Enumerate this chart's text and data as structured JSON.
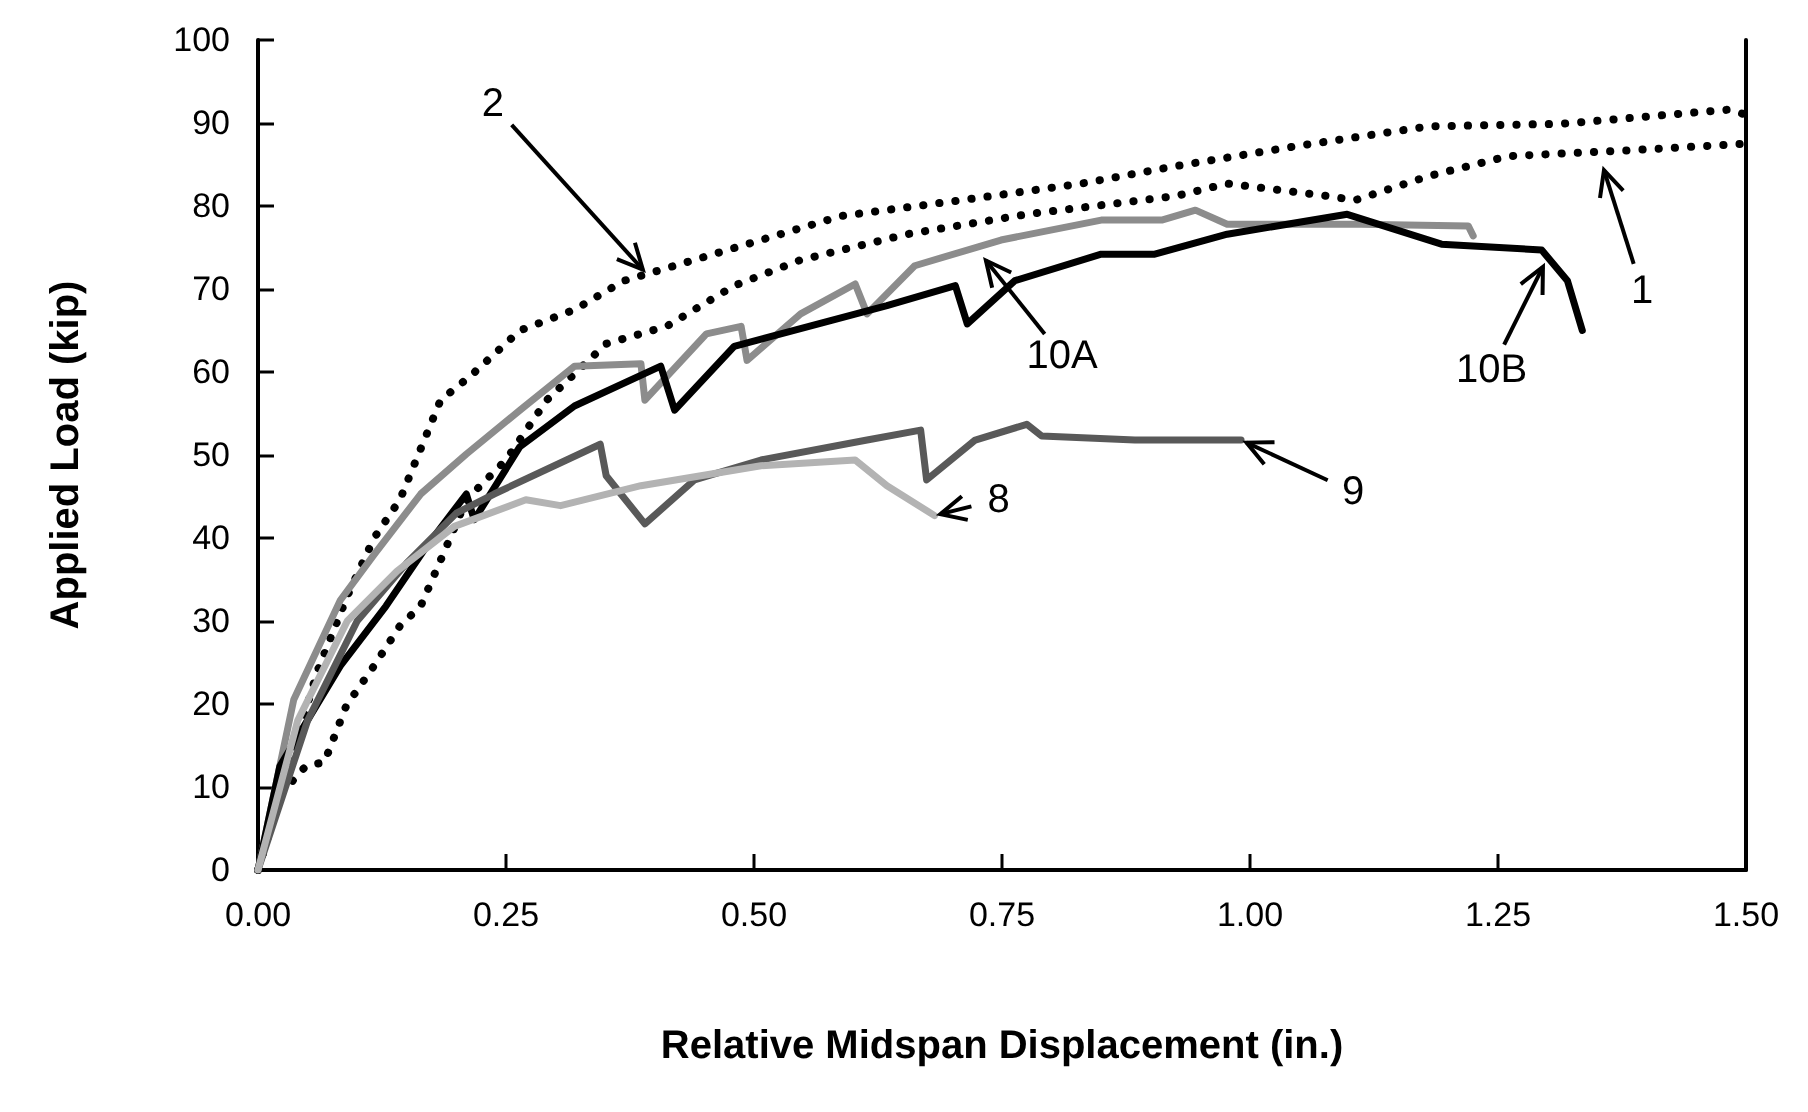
{
  "chart_data": {
    "type": "line",
    "xlabel": "Relative Midspan Displacement (in.)",
    "ylabel": "Applied Load (kip)",
    "xlim": [
      0,
      1.5
    ],
    "xticks": [
      {
        "value": 0,
        "label": "0.00"
      },
      {
        "value": 0.25,
        "label": "0.25"
      },
      {
        "value": 0.5,
        "label": "0.50"
      },
      {
        "value": 0.75,
        "label": "0.75"
      },
      {
        "value": 1,
        "label": "1.00"
      },
      {
        "value": 1.25,
        "label": "1.25"
      },
      {
        "value": 1.5,
        "label": "1.50"
      }
    ],
    "ylim": [
      0,
      100
    ],
    "yticks": [
      0,
      10,
      20,
      30,
      40,
      50,
      60,
      70,
      80,
      90,
      100
    ],
    "grid": false,
    "marker": "none",
    "series": [
      {
        "color": "#000000",
        "line_style": "dotted",
        "x": [
          0,
          0.03,
          0.06,
          0.09,
          0.117,
          0.143,
          0.184,
          0.214,
          0.264,
          0.319,
          0.369,
          0.392,
          0.507,
          0.588,
          0.709,
          0.83,
          0.925,
          1.046,
          1.18,
          1.314,
          1.482,
          1.5
        ],
        "values": [
          0,
          12,
          24,
          33,
          40,
          44.6,
          56.6,
          59.5,
          65,
          67.5,
          71,
          71.8,
          75.9,
          78.8,
          80.7,
          82.7,
          84.8,
          87.2,
          89.6,
          89.9,
          91.6,
          91
        ]
      },
      {
        "color": "#000000",
        "line_style": "dotted",
        "x": [
          0,
          0.022,
          0.048,
          0.067,
          0.089,
          0.117,
          0.143,
          0.164,
          0.184,
          0.21,
          0.25,
          0.291,
          0.351,
          0.412,
          0.48,
          0.547,
          0.654,
          0.775,
          0.925,
          0.977,
          1.078,
          1.106,
          1.18,
          1.26,
          1.381,
          1.5
        ],
        "values": [
          0,
          9,
          12.5,
          13,
          19.8,
          24.6,
          29.4,
          31.8,
          37.3,
          44.6,
          49.4,
          56.6,
          63.4,
          65.5,
          70.4,
          73.5,
          76.6,
          79,
          81.2,
          82.7,
          81.2,
          80.7,
          83.6,
          86,
          86.7,
          87.5
        ]
      },
      {
        "color": "#8c8c8c",
        "line_style": "solid",
        "x": [
          0,
          0.036,
          0.083,
          0.117,
          0.164,
          0.21,
          0.264,
          0.319,
          0.386,
          0.39,
          0.452,
          0.487,
          0.493,
          0.547,
          0.602,
          0.614,
          0.662,
          0.749,
          0.85,
          0.911,
          0.945,
          0.977,
          1.112,
          1.22,
          1.225
        ],
        "values": [
          0,
          20.5,
          32.5,
          38,
          45.3,
          50.1,
          55.4,
          60.7,
          61,
          56.6,
          64.6,
          65.5,
          61.4,
          67,
          70.6,
          67,
          72.8,
          75.9,
          78.3,
          78.3,
          79.5,
          77.8,
          77.8,
          77.6,
          76.4
        ]
      },
      {
        "color": "#000000",
        "line_style": "solid",
        "x": [
          0,
          0.022,
          0.083,
          0.129,
          0.17,
          0.21,
          0.218,
          0.264,
          0.319,
          0.406,
          0.42,
          0.48,
          0.634,
          0.703,
          0.715,
          0.763,
          0.85,
          0.904,
          0.977,
          1.098,
          1.193,
          1.294,
          1.32,
          1.335
        ],
        "values": [
          0,
          12.5,
          24.6,
          31.8,
          39,
          45.3,
          42.2,
          51,
          55.9,
          60.7,
          55.4,
          63.1,
          68,
          70.4,
          65.8,
          71,
          74.2,
          74.2,
          76.6,
          79,
          75.4,
          74.7,
          71,
          65
        ]
      },
      {
        "color": "#595959",
        "line_style": "solid",
        "x": [
          0,
          0.05,
          0.1,
          0.15,
          0.2,
          0.238,
          0.345,
          0.351,
          0.39,
          0.44,
          0.507,
          0.614,
          0.668,
          0.674,
          0.723,
          0.775,
          0.79,
          0.884,
          0.991
        ],
        "values": [
          0,
          18,
          30,
          37,
          43,
          45.3,
          51.3,
          47.5,
          41.7,
          47,
          49.4,
          51.8,
          53,
          47,
          51.8,
          53.7,
          52.3,
          51.8,
          51.8
        ]
      },
      {
        "color": "#b3b3b3",
        "line_style": "solid",
        "x": [
          0,
          0.04,
          0.09,
          0.14,
          0.198,
          0.27,
          0.305,
          0.386,
          0.507,
          0.602,
          0.634,
          0.682
        ],
        "values": [
          0,
          18,
          30,
          36,
          41.4,
          44.6,
          43.9,
          46.3,
          48.7,
          49.4,
          46.3,
          42.7
        ]
      }
    ],
    "annotations": [
      {
        "text": "2",
        "x": 0.392,
        "y": 71.8
      },
      {
        "text": "10A",
        "x": 0.73,
        "y": 74
      },
      {
        "text": "10B",
        "x": 1.298,
        "y": 73.3
      },
      {
        "text": "1",
        "x": 1.355,
        "y": 85
      },
      {
        "text": "9",
        "x": 0.991,
        "y": 51.8
      },
      {
        "text": "8",
        "x": 0.682,
        "y": 42.7
      }
    ]
  }
}
